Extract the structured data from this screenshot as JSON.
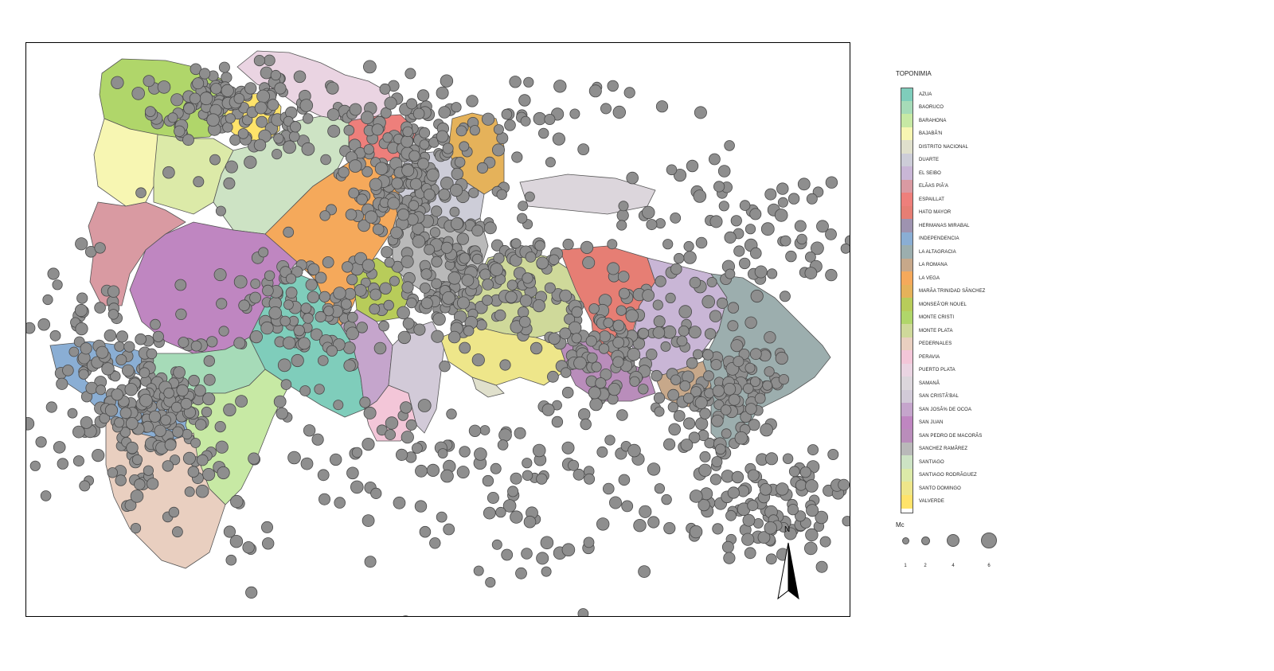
{
  "legend": {
    "title": "TOPONIMIA",
    "items": [
      {
        "label": "AZUA",
        "color": "#7fcdbb"
      },
      {
        "label": "BAORUCO",
        "color": "#a6dbb8"
      },
      {
        "label": "BARAHONA",
        "color": "#c7e9a4"
      },
      {
        "label": "BAJABÃ'N",
        "color": "#f7f6b2"
      },
      {
        "label": "DISTRITO NACIONAL",
        "color": "#e0e0cc"
      },
      {
        "label": "DUARTE",
        "color": "#cdcdd8"
      },
      {
        "label": "EL SEIBO",
        "color": "#c9b6d6"
      },
      {
        "label": "ELÃAS PIÃ'A",
        "color": "#d99aa2"
      },
      {
        "label": "ESPAILLAT",
        "color": "#ee7f7b"
      },
      {
        "label": "HATO MAYOR",
        "color": "#e67e74"
      },
      {
        "label": "HERMANAS MIRABAL",
        "color": "#9e93b0"
      },
      {
        "label": "INDEPENDENCIA",
        "color": "#8aaed4"
      },
      {
        "label": "LA ALTAGRACIA",
        "color": "#9caeae"
      },
      {
        "label": "LA ROMANA",
        "color": "#c7a88a"
      },
      {
        "label": "LA VEGA",
        "color": "#f5a95b"
      },
      {
        "label": "MARÃA TRINIDAD SÃNCHEZ",
        "color": "#e5b25a"
      },
      {
        "label": "MONSEÃ'OR NOUEL",
        "color": "#b8cc5a"
      },
      {
        "label": "MONTE CRISTI",
        "color": "#b0d66a"
      },
      {
        "label": "MONTE PLATA",
        "color": "#cfd99a"
      },
      {
        "label": "PEDERNALES",
        "color": "#e9cfc0"
      },
      {
        "label": "PERAVIA",
        "color": "#f3c6d8"
      },
      {
        "label": "PUERTO PLATA",
        "color": "#ead4e2"
      },
      {
        "label": "SAMANÃ",
        "color": "#dcd6dc"
      },
      {
        "label": "SAN CRISTÃ'BAL",
        "color": "#d2cad8"
      },
      {
        "label": "SAN JOSÃ% DE OCOA",
        "color": "#c5a5cc"
      },
      {
        "label": "SAN JUAN",
        "color": "#bf86c1"
      },
      {
        "label": "SAN PEDRO DE MACORÃS",
        "color": "#b98dbb"
      },
      {
        "label": "SANCHEZ RAMÃREZ",
        "color": "#b9b9b9"
      },
      {
        "label": "SANTIAGO",
        "color": "#cde3c4"
      },
      {
        "label": "SANTIAGO RODRÃGUEZ",
        "color": "#dceaa8"
      },
      {
        "label": "SANTO DOMINGO",
        "color": "#eee68a"
      },
      {
        "label": "VALVERDE",
        "color": "#ffe36a"
      }
    ]
  },
  "size_legend": {
    "title": "Mc",
    "items": [
      {
        "label": "1",
        "value": 1
      },
      {
        "label": "2",
        "value": 2
      },
      {
        "label": "4",
        "value": 4
      },
      {
        "label": "6",
        "value": 6
      }
    ]
  },
  "north_arrow": {
    "label": "N"
  },
  "colors": {
    "point_fill": "#8e8e8e",
    "point_stroke": "#4a4a4a",
    "border": "#555555"
  }
}
